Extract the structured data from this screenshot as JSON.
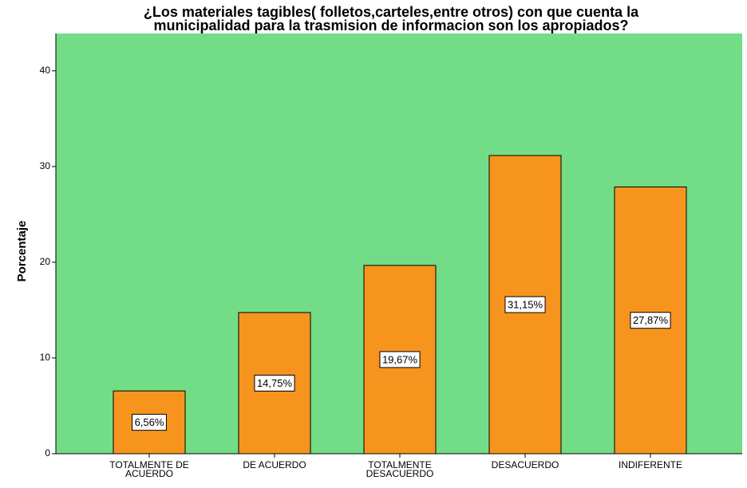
{
  "chart_data": {
    "type": "bar",
    "title": "¿Los materiales tagibles( folletos,carteles,entre otros) con que cuenta la\nmunicipalidad para la trasmision de informacion son los apropiados?",
    "y_label": "Porcentaje",
    "categories": [
      "TOTALMENTE DE\nACUERDO",
      "DE ACUERDO",
      "TOTALMENTE\nDESACUERDO",
      "DESACUERDO",
      "INDIFERENTE"
    ],
    "values": [
      6.56,
      14.75,
      19.67,
      31.15,
      27.87
    ],
    "value_labels": [
      "6,56%",
      "14,75%",
      "19,67%",
      "31,15%",
      "27,87%"
    ],
    "color": "#f7941d",
    "background": "#72dd86",
    "ylim": [
      0,
      43.9
    ],
    "yticks": [
      0,
      10,
      20,
      30,
      40
    ],
    "grid": false
  }
}
